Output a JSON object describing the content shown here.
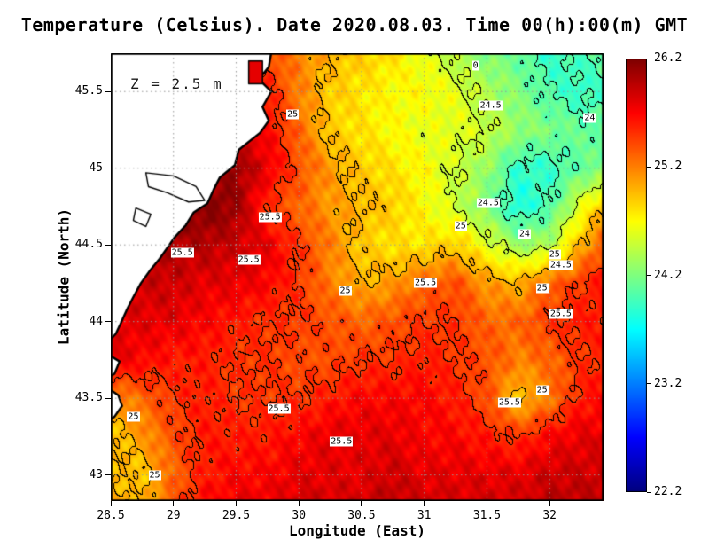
{
  "chart_data": {
    "type": "heatmap",
    "title": "Temperature (Celsius). Date 2020.08.03. Time 00(h):00(m) GMT",
    "depth_annotation": "Z = 2.5 m",
    "date": "2020.08.03",
    "time": "00(h):00(m) GMT",
    "units": "Celsius",
    "xlabel": "Longitude (East)",
    "ylabel": "Latitude (North)",
    "x_range": [
      28.5,
      32.43
    ],
    "y_range": [
      42.83,
      45.75
    ],
    "x_ticks": [
      {
        "value": 28.5,
        "label": "28.5"
      },
      {
        "value": 29,
        "label": "29"
      },
      {
        "value": 29.5,
        "label": "29.5"
      },
      {
        "value": 30,
        "label": "30"
      },
      {
        "value": 30.5,
        "label": "30.5"
      },
      {
        "value": 31,
        "label": "31"
      },
      {
        "value": 31.5,
        "label": "31.5"
      },
      {
        "value": 32,
        "label": "32"
      }
    ],
    "y_ticks": [
      {
        "value": 43,
        "label": "43"
      },
      {
        "value": 43.5,
        "label": "43.5"
      },
      {
        "value": 44,
        "label": "44"
      },
      {
        "value": 44.5,
        "label": "44.5"
      },
      {
        "value": 45,
        "label": "45"
      },
      {
        "value": 45.5,
        "label": "45.5"
      }
    ],
    "colorbar": {
      "range": [
        22.2,
        26.2
      ],
      "ticks": [
        {
          "value": 26.2,
          "label": "26.2"
        },
        {
          "value": 25.2,
          "label": "25.2"
        },
        {
          "value": 24.2,
          "label": "24.2"
        },
        {
          "value": 23.2,
          "label": "23.2"
        },
        {
          "value": 22.2,
          "label": "22.2"
        }
      ]
    },
    "colormap": "jet",
    "grid_dotted": true,
    "contour_levels": [
      24,
      24.5,
      25,
      25.5
    ],
    "lon": [
      28.5,
      28.75,
      29,
      29.25,
      29.5,
      29.75,
      30,
      30.25,
      30.5,
      30.75,
      31,
      31.25,
      31.5,
      31.75,
      32,
      32.25,
      32.5
    ],
    "lat": [
      45.75,
      45.5,
      45.25,
      45,
      44.75,
      44.5,
      44.25,
      44,
      43.75,
      43.5,
      43.25,
      43,
      42.75
    ],
    "temperature_grid": [
      [
        25.3,
        25.3,
        25.3,
        25.3,
        25.3,
        25.4,
        25.2,
        25.0,
        24.9,
        24.8,
        24.6,
        24.4,
        24.2,
        24.1,
        23.9,
        24.0,
        24.1
      ],
      [
        25.5,
        25.5,
        25.5,
        25.5,
        25.5,
        25.6,
        25.2,
        24.9,
        24.8,
        24.7,
        24.7,
        24.6,
        24.4,
        24.2,
        24.0,
        23.9,
        24.0
      ],
      [
        25.7,
        25.7,
        25.7,
        25.7,
        25.8,
        25.7,
        25.3,
        24.9,
        24.8,
        24.7,
        24.6,
        24.6,
        24.5,
        24.3,
        24.2,
        24.1,
        24.1
      ],
      [
        26.0,
        26.0,
        26.0,
        26.0,
        26.1,
        25.8,
        25.4,
        25.1,
        24.9,
        24.8,
        24.7,
        24.5,
        24.3,
        23.9,
        23.9,
        24.1,
        24.2
      ],
      [
        26.2,
        26.2,
        26.2,
        26.2,
        26.1,
        25.5,
        25.3,
        25.1,
        25.0,
        24.9,
        24.7,
        24.5,
        24.2,
        23.8,
        24.0,
        24.6,
        25.1
      ],
      [
        26.1,
        26.1,
        26.0,
        26.0,
        25.9,
        25.8,
        25.5,
        25.2,
        24.9,
        24.8,
        24.8,
        24.9,
        24.6,
        24.3,
        24.4,
        25.0,
        25.5
      ],
      [
        25.9,
        25.9,
        25.9,
        25.8,
        25.8,
        25.7,
        25.5,
        25.2,
        25.0,
        25.1,
        25.3,
        25.4,
        25.1,
        25.0,
        25.3,
        25.5,
        25.7
      ],
      [
        25.8,
        25.8,
        25.8,
        25.7,
        25.6,
        25.5,
        25.5,
        25.4,
        25.3,
        25.4,
        25.5,
        25.5,
        25.3,
        25.3,
        25.5,
        25.6,
        25.6
      ],
      [
        25.8,
        25.7,
        25.6,
        25.6,
        25.5,
        25.5,
        25.4,
        25.4,
        25.5,
        25.5,
        25.6,
        25.5,
        25.4,
        25.2,
        25.3,
        25.5,
        25.6
      ],
      [
        25.1,
        25.3,
        25.5,
        25.6,
        25.5,
        25.5,
        25.5,
        25.6,
        25.7,
        25.7,
        25.7,
        25.6,
        25.4,
        24.9,
        25.2,
        25.6,
        25.7
      ],
      [
        24.9,
        25.1,
        25.4,
        25.6,
        25.6,
        25.6,
        25.7,
        25.8,
        25.8,
        25.8,
        25.7,
        25.7,
        25.6,
        25.5,
        25.7,
        25.8,
        25.8
      ],
      [
        25.0,
        24.9,
        25.3,
        25.6,
        25.7,
        25.7,
        25.8,
        25.8,
        25.8,
        25.9,
        25.8,
        25.8,
        25.8,
        25.8,
        25.9,
        25.9,
        25.9
      ],
      [
        25.1,
        25.0,
        25.4,
        25.7,
        25.8,
        25.8,
        25.9,
        25.9,
        25.9,
        26.0,
        25.9,
        25.9,
        25.9,
        25.9,
        26.0,
        26.0,
        26.0
      ]
    ],
    "contour_labels": [
      {
        "text": "25",
        "lon": 29.95,
        "lat": 45.35
      },
      {
        "text": "0",
        "lon": 31.41,
        "lat": 45.67
      },
      {
        "text": "24.5",
        "lon": 31.53,
        "lat": 45.41
      },
      {
        "text": "24",
        "lon": 32.32,
        "lat": 45.33
      },
      {
        "text": "24.5",
        "lon": 31.51,
        "lat": 44.77
      },
      {
        "text": "25",
        "lon": 31.29,
        "lat": 44.62
      },
      {
        "text": "24",
        "lon": 31.8,
        "lat": 44.57
      },
      {
        "text": "25.5",
        "lon": 29.77,
        "lat": 44.68
      },
      {
        "text": "25.5",
        "lon": 29.07,
        "lat": 44.45
      },
      {
        "text": "25.5",
        "lon": 29.6,
        "lat": 44.4
      },
      {
        "text": "25",
        "lon": 32.04,
        "lat": 44.44
      },
      {
        "text": "24.5",
        "lon": 32.09,
        "lat": 44.37
      },
      {
        "text": "25",
        "lon": 30.37,
        "lat": 44.2
      },
      {
        "text": "25.5",
        "lon": 31.01,
        "lat": 44.25
      },
      {
        "text": "25",
        "lon": 31.94,
        "lat": 44.22
      },
      {
        "text": "25.5",
        "lon": 32.09,
        "lat": 44.05
      },
      {
        "text": "25.5",
        "lon": 31.68,
        "lat": 43.47
      },
      {
        "text": "25",
        "lon": 31.94,
        "lat": 43.55
      },
      {
        "text": "25.5",
        "lon": 29.84,
        "lat": 43.43
      },
      {
        "text": "25",
        "lon": 28.68,
        "lat": 43.38
      },
      {
        "text": "25.5",
        "lon": 30.34,
        "lat": 43.22
      },
      {
        "text": "25",
        "lon": 28.85,
        "lat": 43.0
      }
    ],
    "land_polygons": [
      [
        [
          29.8,
          45.85
        ],
        [
          29.76,
          45.66
        ],
        [
          29.68,
          45.58
        ],
        [
          29.78,
          45.5
        ],
        [
          29.71,
          45.4
        ],
        [
          29.76,
          45.31
        ],
        [
          29.69,
          45.23
        ],
        [
          29.52,
          45.12
        ],
        [
          29.49,
          45.02
        ],
        [
          29.37,
          44.94
        ],
        [
          29.32,
          44.86
        ],
        [
          29.27,
          44.77
        ],
        [
          29.16,
          44.71
        ],
        [
          29.1,
          44.63
        ],
        [
          29.01,
          44.55
        ],
        [
          28.95,
          44.48
        ],
        [
          28.89,
          44.41
        ],
        [
          28.81,
          44.33
        ],
        [
          28.74,
          44.25
        ],
        [
          28.68,
          44.16
        ],
        [
          28.63,
          44.08
        ],
        [
          28.58,
          43.99
        ],
        [
          28.54,
          43.92
        ],
        [
          28.47,
          43.86
        ],
        [
          28.2,
          43.86
        ],
        [
          28.2,
          45.85
        ]
      ],
      [
        [
          28.47,
          43.57
        ],
        [
          28.56,
          43.52
        ],
        [
          28.59,
          43.45
        ],
        [
          28.53,
          43.38
        ],
        [
          28.47,
          43.35
        ],
        [
          28.4,
          43.46
        ]
      ],
      [
        [
          28.47,
          43.79
        ],
        [
          28.57,
          43.74
        ],
        [
          28.53,
          43.66
        ],
        [
          28.47,
          43.63
        ],
        [
          28.42,
          43.71
        ]
      ]
    ],
    "lake_outlines": [
      [
        [
          28.78,
          44.97
        ],
        [
          29.0,
          44.95
        ],
        [
          29.18,
          44.88
        ],
        [
          29.25,
          44.79
        ],
        [
          29.12,
          44.78
        ],
        [
          28.95,
          44.84
        ],
        [
          28.8,
          44.88
        ]
      ],
      [
        [
          28.7,
          44.74
        ],
        [
          28.82,
          44.7
        ],
        [
          28.78,
          44.62
        ],
        [
          28.68,
          44.66
        ]
      ]
    ],
    "river_bay": {
      "lon": [
        29.6,
        29.71
      ],
      "lat": [
        45.55,
        45.7
      ],
      "temp": 25.8
    }
  }
}
